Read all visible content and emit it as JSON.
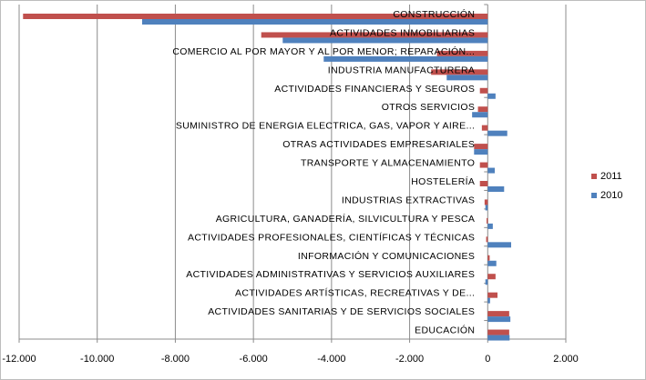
{
  "chart_data": {
    "type": "bar",
    "orientation": "horizontal",
    "categories": [
      "CONSTRUCCIÓN",
      "ACTIVIDADES INMOBILIARIAS",
      "COMERCIO AL POR MAYOR Y AL POR MENOR; REPARACIÓN...",
      "INDUSTRIA MANUFACTURERA",
      "ACTIVIDADES FINANCIERAS Y SEGUROS",
      "OTROS SERVICIOS",
      "SUMINISTRO DE ENERGIA ELECTRICA, GAS, VAPOR Y AIRE...",
      "OTRAS ACTIVIDADES EMPRESARIALES",
      "TRANSPORTE Y ALMACENAMIENTO",
      "HOSTELERÍA",
      "INDUSTRIAS EXTRACTIVAS",
      "AGRICULTURA, GANADERÍA, SILVICULTURA Y PESCA",
      "ACTIVIDADES PROFESIONALES, CIENTÍFICAS Y TÉCNICAS",
      "INFORMACIÓN Y COMUNICACIONES",
      "ACTIVIDADES ADMINISTRATIVAS Y SERVICIOS AUXILIARES",
      "ACTIVIDADES ARTÍSTICAS, RECREATIVAS Y DE...",
      "ACTIVIDADES SANITARIAS Y DE SERVICIOS SOCIALES",
      "EDUCACIÓN"
    ],
    "series": [
      {
        "name": "2011",
        "color": "#c0504d",
        "values": [
          -11900,
          -5800,
          -1300,
          -1450,
          -200,
          -250,
          -150,
          -350,
          -200,
          -200,
          -80,
          -30,
          -40,
          50,
          200,
          250,
          550,
          550
        ]
      },
      {
        "name": "2010",
        "color": "#4f81bd",
        "values": [
          -8850,
          -5250,
          -4200,
          -1050,
          200,
          -400,
          500,
          -350,
          180,
          420,
          -60,
          130,
          600,
          220,
          -60,
          60,
          580,
          560
        ]
      }
    ],
    "x_ticks": [
      "-12.000",
      "-10.000",
      "-8.000",
      "-6.000",
      "-4.000",
      "-2.000",
      "0",
      "2.000"
    ],
    "xlim": [
      -12000,
      2000
    ],
    "xlabel": "",
    "ylabel": "",
    "title": "",
    "grid": "vertical",
    "legend": {
      "position": "right",
      "entries": [
        {
          "name": "2011",
          "color": "#c0504d"
        },
        {
          "name": "2010",
          "color": "#4f81bd"
        }
      ]
    }
  }
}
